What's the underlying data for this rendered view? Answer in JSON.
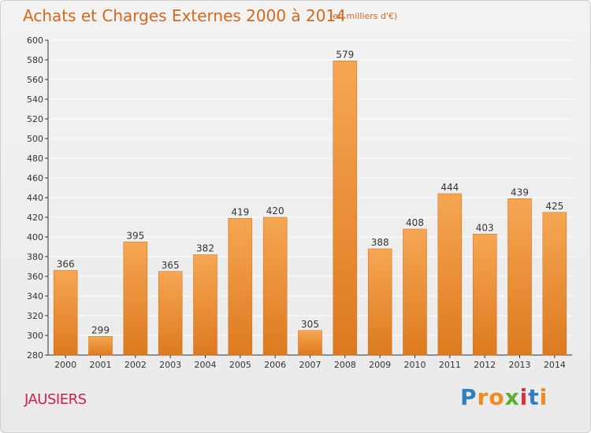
{
  "header": {
    "title": "Achats et Charges Externes 2000 à 2014",
    "subtitle": "(en milliers d'€)"
  },
  "footer": {
    "commune": "JAUSIERS",
    "logo": {
      "letters": [
        "P",
        "r",
        "o",
        "x",
        "i",
        "t",
        "i"
      ],
      "colors": [
        "#2f7fc1",
        "#f08a1c",
        "#f08a1c",
        "#5ab031",
        "#d8313f",
        "#2f7fc1",
        "#f08a1c"
      ]
    }
  },
  "chart_data": {
    "type": "bar",
    "title": "Achats et Charges Externes 2000 à 2014",
    "subtitle": "(en milliers d'€)",
    "xlabel": "",
    "ylabel": "",
    "categories": [
      "2000",
      "2001",
      "2002",
      "2003",
      "2004",
      "2005",
      "2006",
      "2007",
      "2008",
      "2009",
      "2010",
      "2011",
      "2012",
      "2013",
      "2014"
    ],
    "values": [
      366,
      299,
      395,
      365,
      382,
      419,
      420,
      305,
      579,
      388,
      408,
      444,
      403,
      439,
      425
    ],
    "ylim": [
      280,
      600
    ],
    "yticks": [
      280,
      300,
      320,
      340,
      360,
      380,
      400,
      420,
      440,
      460,
      480,
      500,
      520,
      540,
      560,
      580,
      600
    ],
    "grid": true,
    "colors": {
      "bar_top": "#f6a653",
      "bar_bottom": "#dd7a1f",
      "bar_edge": "#c96a15",
      "grid": "#ffffff",
      "axis": "#333333",
      "label": "#333333"
    }
  }
}
